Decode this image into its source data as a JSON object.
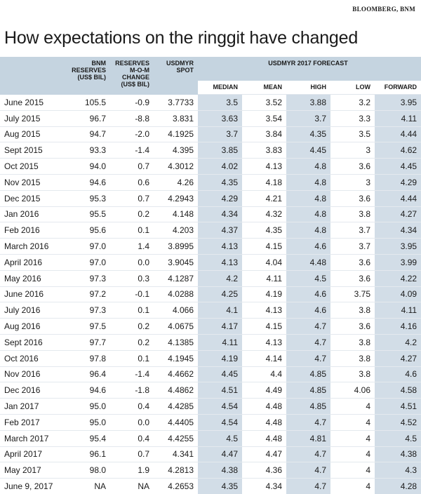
{
  "source": "BLOOMBERG, BNM",
  "title": "How expectations on the ringgit have changed",
  "headers": {
    "reserves": "BNM RESERVES (US$ BIL)",
    "change": "RESERVES M-O-M CHANGE (US$ BIL)",
    "spot": "USDMYR SPOT",
    "forecast_group": "USDMYR 2017 FORECAST",
    "median": "MEDIAN",
    "mean": "MEAN",
    "high": "HIGH",
    "low": "LOW",
    "forward": "FORWARD"
  },
  "rows": [
    {
      "month": "June 2015",
      "reserves": "105.5",
      "change": "-0.9",
      "spot": "3.7733",
      "median": "3.5",
      "mean": "3.52",
      "high": "3.88",
      "low": "3.2",
      "forward": "3.95"
    },
    {
      "month": "July 2015",
      "reserves": "96.7",
      "change": "-8.8",
      "spot": "3.831",
      "median": "3.63",
      "mean": "3.54",
      "high": "3.7",
      "low": "3.3",
      "forward": "4.11"
    },
    {
      "month": "Aug 2015",
      "reserves": "94.7",
      "change": "-2.0",
      "spot": "4.1925",
      "median": "3.7",
      "mean": "3.84",
      "high": "4.35",
      "low": "3.5",
      "forward": "4.44"
    },
    {
      "month": "Sept 2015",
      "reserves": "93.3",
      "change": "-1.4",
      "spot": "4.395",
      "median": "3.85",
      "mean": "3.83",
      "high": "4.45",
      "low": "3",
      "forward": "4.62"
    },
    {
      "month": "Oct 2015",
      "reserves": "94.0",
      "change": "0.7",
      "spot": "4.3012",
      "median": "4.02",
      "mean": "4.13",
      "high": "4.8",
      "low": "3.6",
      "forward": "4.45"
    },
    {
      "month": "Nov 2015",
      "reserves": "94.6",
      "change": "0.6",
      "spot": "4.26",
      "median": "4.35",
      "mean": "4.18",
      "high": "4.8",
      "low": "3",
      "forward": "4.29"
    },
    {
      "month": "Dec 2015",
      "reserves": "95.3",
      "change": "0.7",
      "spot": "4.2943",
      "median": "4.29",
      "mean": "4.21",
      "high": "4.8",
      "low": "3.6",
      "forward": "4.44"
    },
    {
      "month": "Jan 2016",
      "reserves": "95.5",
      "change": "0.2",
      "spot": "4.148",
      "median": "4.34",
      "mean": "4.32",
      "high": "4.8",
      "low": "3.8",
      "forward": "4.27"
    },
    {
      "month": "Feb 2016",
      "reserves": "95.6",
      "change": "0.1",
      "spot": "4.203",
      "median": "4.37",
      "mean": "4.35",
      "high": "4.8",
      "low": "3.7",
      "forward": "4.34"
    },
    {
      "month": "March 2016",
      "reserves": "97.0",
      "change": "1.4",
      "spot": "3.8995",
      "median": "4.13",
      "mean": "4.15",
      "high": "4.6",
      "low": "3.7",
      "forward": "3.95"
    },
    {
      "month": "April 2016",
      "reserves": "97.0",
      "change": "0.0",
      "spot": "3.9045",
      "median": "4.13",
      "mean": "4.04",
      "high": "4.48",
      "low": "3.6",
      "forward": "3.99"
    },
    {
      "month": "May 2016",
      "reserves": "97.3",
      "change": "0.3",
      "spot": "4.1287",
      "median": "4.2",
      "mean": "4.11",
      "high": "4.5",
      "low": "3.6",
      "forward": "4.22"
    },
    {
      "month": "June 2016",
      "reserves": "97.2",
      "change": "-0.1",
      "spot": "4.0288",
      "median": "4.25",
      "mean": "4.19",
      "high": "4.6",
      "low": "3.75",
      "forward": "4.09"
    },
    {
      "month": "July 2016",
      "reserves": "97.3",
      "change": "0.1",
      "spot": "4.066",
      "median": "4.1",
      "mean": "4.13",
      "high": "4.6",
      "low": "3.8",
      "forward": "4.11"
    },
    {
      "month": "Aug 2016",
      "reserves": "97.5",
      "change": "0.2",
      "spot": "4.0675",
      "median": "4.17",
      "mean": "4.15",
      "high": "4.7",
      "low": "3.6",
      "forward": "4.16"
    },
    {
      "month": "Sept 2016",
      "reserves": "97.7",
      "change": "0.2",
      "spot": "4.1385",
      "median": "4.11",
      "mean": "4.13",
      "high": "4.7",
      "low": "3.8",
      "forward": "4.2"
    },
    {
      "month": "Oct 2016",
      "reserves": "97.8",
      "change": "0.1",
      "spot": "4.1945",
      "median": "4.19",
      "mean": "4.14",
      "high": "4.7",
      "low": "3.8",
      "forward": "4.27"
    },
    {
      "month": "Nov 2016",
      "reserves": "96.4",
      "change": "-1.4",
      "spot": "4.4662",
      "median": "4.45",
      "mean": "4.4",
      "high": "4.85",
      "low": "3.8",
      "forward": "4.6"
    },
    {
      "month": "Dec 2016",
      "reserves": "94.6",
      "change": "-1.8",
      "spot": "4.4862",
      "median": "4.51",
      "mean": "4.49",
      "high": "4.85",
      "low": "4.06",
      "forward": "4.58"
    },
    {
      "month": "Jan 2017",
      "reserves": "95.0",
      "change": "0.4",
      "spot": "4.4285",
      "median": "4.54",
      "mean": "4.48",
      "high": "4.85",
      "low": "4",
      "forward": "4.51"
    },
    {
      "month": "Feb 2017",
      "reserves": "95.0",
      "change": "0.0",
      "spot": "4.4405",
      "median": "4.54",
      "mean": "4.48",
      "high": "4.7",
      "low": "4",
      "forward": "4.52"
    },
    {
      "month": "March 2017",
      "reserves": "95.4",
      "change": "0.4",
      "spot": "4.4255",
      "median": "4.5",
      "mean": "4.48",
      "high": "4.81",
      "low": "4",
      "forward": "4.5"
    },
    {
      "month": "April 2017",
      "reserves": "96.1",
      "change": "0.7",
      "spot": "4.341",
      "median": "4.47",
      "mean": "4.47",
      "high": "4.7",
      "low": "4",
      "forward": "4.38"
    },
    {
      "month": "May 2017",
      "reserves": "98.0",
      "change": "1.9",
      "spot": "4.2813",
      "median": "4.38",
      "mean": "4.36",
      "high": "4.7",
      "low": "4",
      "forward": "4.3"
    },
    {
      "month": "June 9, 2017",
      "reserves": "NA",
      "change": "NA",
      "spot": "4.2653",
      "median": "4.35",
      "mean": "4.34",
      "high": "4.7",
      "low": "4",
      "forward": "4.28"
    }
  ]
}
